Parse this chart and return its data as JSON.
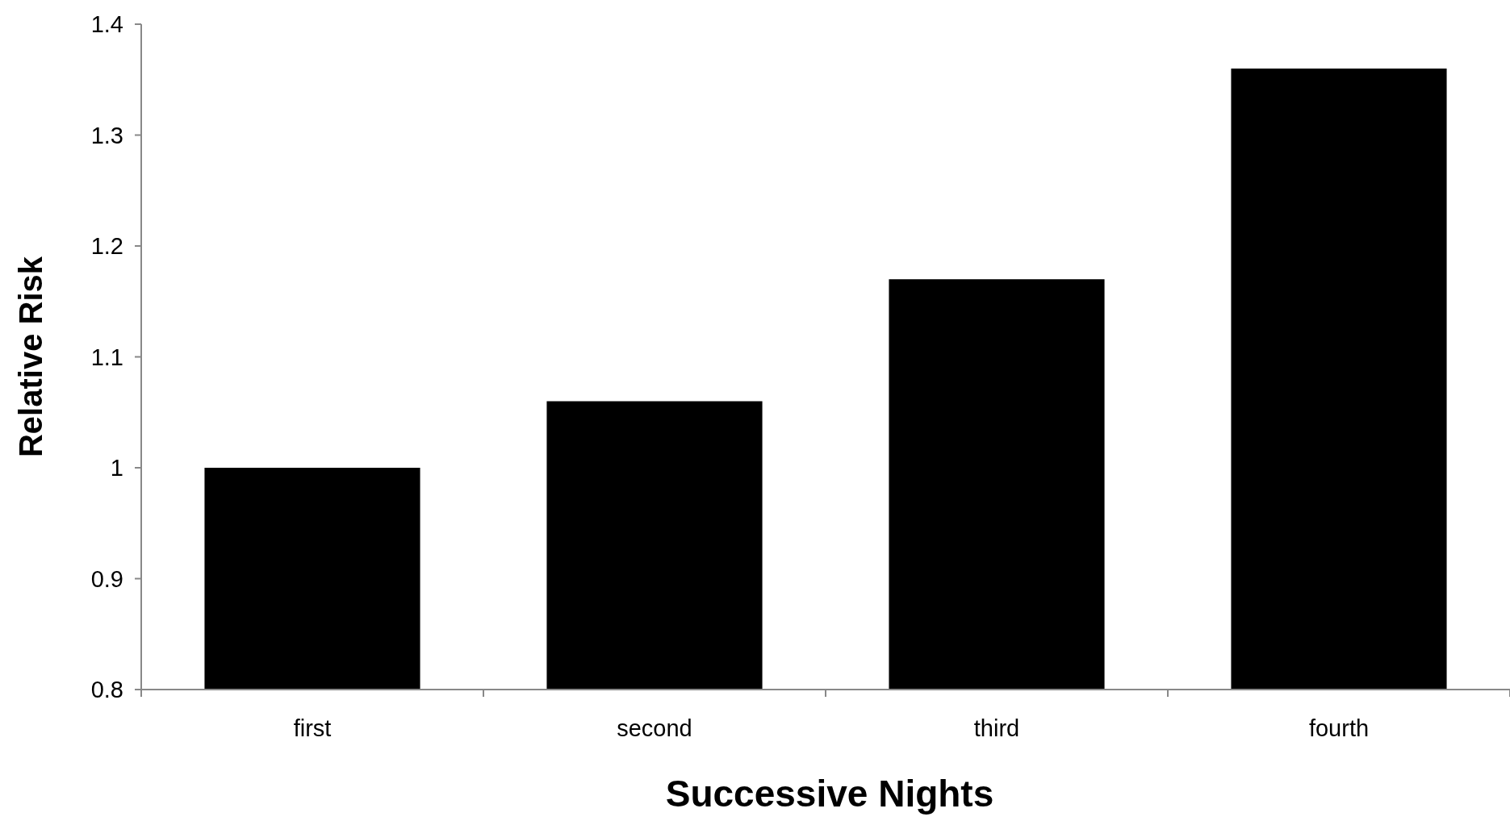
{
  "chart_data": {
    "type": "bar",
    "xlabel": "Successive Nights",
    "ylabel": "Relative Risk",
    "categories": [
      "first",
      "second",
      "third",
      "fourth"
    ],
    "values": [
      1.0,
      1.06,
      1.17,
      1.36
    ],
    "color": "#000000",
    "ylim": [
      0.8,
      1.4
    ],
    "yticks": [
      0.8,
      0.9,
      1,
      1.1,
      1.2,
      1.3,
      1.4
    ],
    "grid": false
  }
}
